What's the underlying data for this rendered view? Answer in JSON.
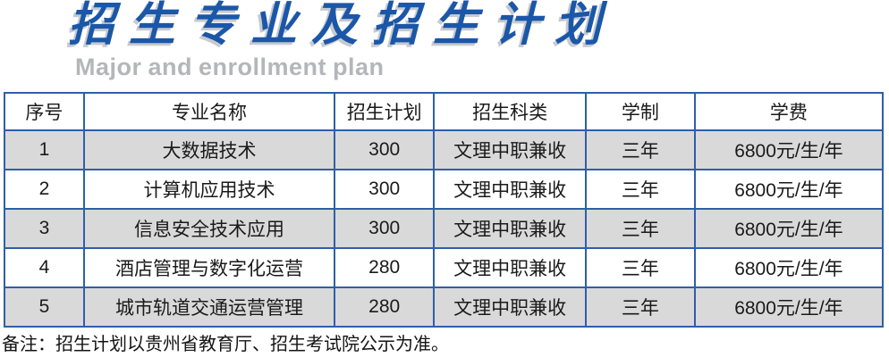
{
  "header": {
    "title": "招生专业及招生计划",
    "subtitle": "Major and enrollment plan"
  },
  "table": {
    "columns": [
      "序号",
      "专业名称",
      "招生计划",
      "招生科类",
      "学制",
      "学费"
    ],
    "rows": [
      [
        "1",
        "大数据技术",
        "300",
        "文理中职兼收",
        "三年",
        "6800元/生/年"
      ],
      [
        "2",
        "计算机应用技术",
        "300",
        "文理中职兼收",
        "三年",
        "6800元/生/年"
      ],
      [
        "3",
        "信息安全技术应用",
        "300",
        "文理中职兼收",
        "三年",
        "6800元/生/年"
      ],
      [
        "4",
        "酒店管理与数字化运营",
        "280",
        "文理中职兼收",
        "三年",
        "6800元/生/年"
      ],
      [
        "5",
        "城市轨道交通运营管理",
        "280",
        "文理中职兼收",
        "三年",
        "6800元/生/年"
      ]
    ]
  },
  "note": "备注：招生计划以贵州省教育厅、招生考试院公示为准。",
  "colors": {
    "title_blue": "#1b57a8",
    "title_shadow_gray": "#c7cad0",
    "subtitle_gray": "#b4b6b9",
    "table_border_blue": "#2e5fa9",
    "shaded_row_gray": "#d9d9d9",
    "text_black": "#1a1a1a"
  }
}
